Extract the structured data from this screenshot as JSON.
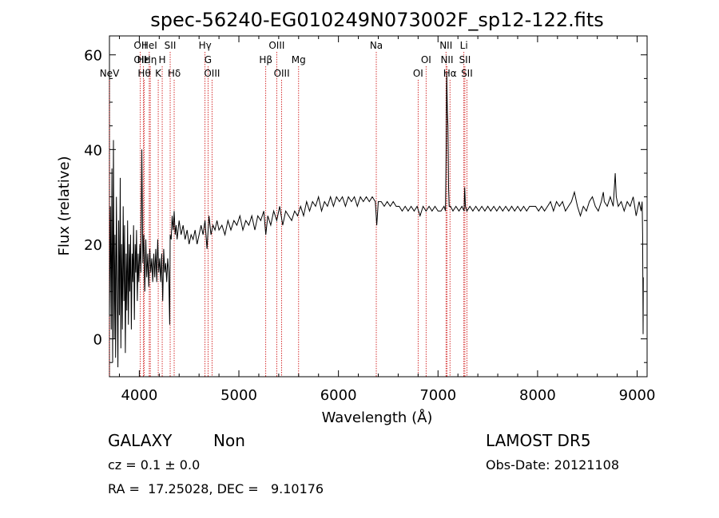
{
  "chart_data": {
    "type": "line",
    "title": "spec-56240-EG010249N073002F_sp12-122.fits",
    "xlabel": "Wavelength (Å)",
    "ylabel": "Flux (relative)",
    "xlim": [
      3700,
      9100
    ],
    "ylim": [
      -8,
      64
    ],
    "x_ticks": [
      4000,
      5000,
      6000,
      7000,
      8000,
      9000
    ],
    "x_tick_labels": [
      "4000",
      "5000",
      "6000",
      "7000",
      "8000",
      "9000"
    ],
    "y_ticks": [
      0,
      20,
      40,
      60
    ],
    "y_tick_labels": [
      "0",
      "20",
      "40",
      "60"
    ],
    "grid": false,
    "line_color": "#000000",
    "marker_color": "#cc0000",
    "line_markers": [
      {
        "label": "NeV",
        "x": 3700,
        "row": 3
      },
      {
        "label": "OII",
        "x": 4010,
        "row": 1
      },
      {
        "label": "OII",
        "x": 4010,
        "row": 2
      },
      {
        "label": "Hε",
        "x": 4040,
        "row": 2
      },
      {
        "label": "Hθ",
        "x": 4050,
        "row": 3
      },
      {
        "label": "HeI",
        "x": 4100,
        "row": 1
      },
      {
        "label": "Hη",
        "x": 4110,
        "row": 2
      },
      {
        "label": "K",
        "x": 4190,
        "row": 3
      },
      {
        "label": "H",
        "x": 4230,
        "row": 2
      },
      {
        "label": "SII",
        "x": 4310,
        "row": 1
      },
      {
        "label": "Hδ",
        "x": 4350,
        "row": 3
      },
      {
        "label": "Hγ",
        "x": 4660,
        "row": 1
      },
      {
        "label": "G",
        "x": 4690,
        "row": 2
      },
      {
        "label": "OIII",
        "x": 4730,
        "row": 3
      },
      {
        "label": "Hβ",
        "x": 5270,
        "row": 2
      },
      {
        "label": "OIII",
        "x": 5380,
        "row": 1
      },
      {
        "label": "OIII",
        "x": 5430,
        "row": 3
      },
      {
        "label": "Mg",
        "x": 5600,
        "row": 2
      },
      {
        "label": "Na",
        "x": 6380,
        "row": 1
      },
      {
        "label": "OI",
        "x": 6800,
        "row": 3
      },
      {
        "label": "OI",
        "x": 6880,
        "row": 2
      },
      {
        "label": "NII",
        "x": 7080,
        "row": 1
      },
      {
        "label": "NII",
        "x": 7090,
        "row": 2
      },
      {
        "label": "Hα",
        "x": 7120,
        "row": 3
      },
      {
        "label": "Li",
        "x": 7260,
        "row": 1
      },
      {
        "label": "SII",
        "x": 7270,
        "row": 2
      },
      {
        "label": "SII",
        "x": 7290,
        "row": 3
      }
    ],
    "series": [
      {
        "values": [
          [
            3700,
            5
          ],
          [
            3710,
            28
          ],
          [
            3718,
            2
          ],
          [
            3725,
            36
          ],
          [
            3732,
            -5
          ],
          [
            3740,
            42
          ],
          [
            3748,
            0
          ],
          [
            3755,
            22
          ],
          [
            3762,
            -4
          ],
          [
            3770,
            30
          ],
          [
            3778,
            10
          ],
          [
            3785,
            -6
          ],
          [
            3792,
            25
          ],
          [
            3800,
            5
          ],
          [
            3808,
            34
          ],
          [
            3815,
            -2
          ],
          [
            3822,
            20
          ],
          [
            3830,
            2
          ],
          [
            3838,
            28
          ],
          [
            3845,
            8
          ],
          [
            3852,
            24
          ],
          [
            3860,
            -3
          ],
          [
            3868,
            18
          ],
          [
            3875,
            6
          ],
          [
            3882,
            25
          ],
          [
            3890,
            3
          ],
          [
            3898,
            20
          ],
          [
            3905,
            10
          ],
          [
            3912,
            22
          ],
          [
            3920,
            2
          ],
          [
            3928,
            18
          ],
          [
            3935,
            12
          ],
          [
            3942,
            24
          ],
          [
            3950,
            4
          ],
          [
            3958,
            20
          ],
          [
            3965,
            14
          ],
          [
            3972,
            23
          ],
          [
            3980,
            8
          ],
          [
            3988,
            18
          ],
          [
            3995,
            12
          ],
          [
            4005,
            20
          ],
          [
            4015,
            14
          ],
          [
            4025,
            40
          ],
          [
            4035,
            16
          ],
          [
            4045,
            22
          ],
          [
            4055,
            10
          ],
          [
            4065,
            21
          ],
          [
            4075,
            13
          ],
          [
            4085,
            18
          ],
          [
            4095,
            11
          ],
          [
            4105,
            19
          ],
          [
            4115,
            14
          ],
          [
            4125,
            17
          ],
          [
            4135,
            12
          ],
          [
            4145,
            18
          ],
          [
            4155,
            13
          ],
          [
            4165,
            19
          ],
          [
            4175,
            12
          ],
          [
            4185,
            21
          ],
          [
            4195,
            14
          ],
          [
            4205,
            17
          ],
          [
            4215,
            12
          ],
          [
            4225,
            18
          ],
          [
            4235,
            8
          ],
          [
            4245,
            19
          ],
          [
            4255,
            14
          ],
          [
            4265,
            16
          ],
          [
            4275,
            12
          ],
          [
            4285,
            17
          ],
          [
            4295,
            14
          ],
          [
            4305,
            3
          ],
          [
            4310,
            22
          ],
          [
            4320,
            21
          ],
          [
            4330,
            26
          ],
          [
            4340,
            23
          ],
          [
            4350,
            27
          ],
          [
            4360,
            22
          ],
          [
            4370,
            24
          ],
          [
            4380,
            21
          ],
          [
            4400,
            25
          ],
          [
            4420,
            22
          ],
          [
            4440,
            24
          ],
          [
            4460,
            21
          ],
          [
            4480,
            23
          ],
          [
            4500,
            20
          ],
          [
            4520,
            22
          ],
          [
            4540,
            21
          ],
          [
            4560,
            23
          ],
          [
            4580,
            20
          ],
          [
            4600,
            22
          ],
          [
            4620,
            24
          ],
          [
            4640,
            22
          ],
          [
            4660,
            25
          ],
          [
            4680,
            19
          ],
          [
            4700,
            26
          ],
          [
            4720,
            22
          ],
          [
            4740,
            24
          ],
          [
            4760,
            23
          ],
          [
            4780,
            25
          ],
          [
            4800,
            23
          ],
          [
            4830,
            24
          ],
          [
            4860,
            22
          ],
          [
            4890,
            25
          ],
          [
            4920,
            23
          ],
          [
            4950,
            25
          ],
          [
            4980,
            24
          ],
          [
            5010,
            26
          ],
          [
            5040,
            23
          ],
          [
            5070,
            25
          ],
          [
            5100,
            24
          ],
          [
            5130,
            26
          ],
          [
            5160,
            23
          ],
          [
            5190,
            26
          ],
          [
            5220,
            25
          ],
          [
            5250,
            27
          ],
          [
            5270,
            22
          ],
          [
            5290,
            26
          ],
          [
            5320,
            24
          ],
          [
            5350,
            27
          ],
          [
            5380,
            25
          ],
          [
            5410,
            28
          ],
          [
            5440,
            24
          ],
          [
            5470,
            27
          ],
          [
            5500,
            26
          ],
          [
            5530,
            25
          ],
          [
            5560,
            27
          ],
          [
            5590,
            26
          ],
          [
            5620,
            28
          ],
          [
            5650,
            26
          ],
          [
            5680,
            29
          ],
          [
            5710,
            27
          ],
          [
            5740,
            29
          ],
          [
            5770,
            28
          ],
          [
            5800,
            30
          ],
          [
            5830,
            27
          ],
          [
            5860,
            29
          ],
          [
            5890,
            28
          ],
          [
            5920,
            30
          ],
          [
            5950,
            28
          ],
          [
            5980,
            30
          ],
          [
            6010,
            29
          ],
          [
            6040,
            30
          ],
          [
            6070,
            28
          ],
          [
            6100,
            30
          ],
          [
            6130,
            29
          ],
          [
            6160,
            30
          ],
          [
            6190,
            28
          ],
          [
            6220,
            30
          ],
          [
            6250,
            29
          ],
          [
            6280,
            30
          ],
          [
            6310,
            29
          ],
          [
            6340,
            30
          ],
          [
            6370,
            29
          ],
          [
            6385,
            24
          ],
          [
            6400,
            29
          ],
          [
            6430,
            29
          ],
          [
            6460,
            28
          ],
          [
            6490,
            29
          ],
          [
            6520,
            28
          ],
          [
            6550,
            29
          ],
          [
            6580,
            28
          ],
          [
            6610,
            28
          ],
          [
            6640,
            27
          ],
          [
            6670,
            28
          ],
          [
            6700,
            27
          ],
          [
            6730,
            28
          ],
          [
            6760,
            27
          ],
          [
            6790,
            28
          ],
          [
            6820,
            26
          ],
          [
            6850,
            28
          ],
          [
            6880,
            27
          ],
          [
            6910,
            28
          ],
          [
            6940,
            27
          ],
          [
            6970,
            28
          ],
          [
            7000,
            27
          ],
          [
            7030,
            27
          ],
          [
            7060,
            28
          ],
          [
            7075,
            27
          ],
          [
            7082,
            40
          ],
          [
            7088,
            56
          ],
          [
            7094,
            48
          ],
          [
            7100,
            45
          ],
          [
            7106,
            32
          ],
          [
            7112,
            28
          ],
          [
            7125,
            28
          ],
          [
            7150,
            27
          ],
          [
            7180,
            28
          ],
          [
            7210,
            27
          ],
          [
            7240,
            28
          ],
          [
            7262,
            27
          ],
          [
            7268,
            32
          ],
          [
            7275,
            28
          ],
          [
            7290,
            27
          ],
          [
            7320,
            28
          ],
          [
            7350,
            27
          ],
          [
            7380,
            28
          ],
          [
            7410,
            27
          ],
          [
            7440,
            28
          ],
          [
            7470,
            27
          ],
          [
            7500,
            28
          ],
          [
            7530,
            27
          ],
          [
            7560,
            28
          ],
          [
            7590,
            27
          ],
          [
            7620,
            28
          ],
          [
            7650,
            27
          ],
          [
            7680,
            28
          ],
          [
            7710,
            27
          ],
          [
            7740,
            28
          ],
          [
            7770,
            27
          ],
          [
            7800,
            28
          ],
          [
            7830,
            27
          ],
          [
            7860,
            28
          ],
          [
            7890,
            27
          ],
          [
            7920,
            28
          ],
          [
            7950,
            28
          ],
          [
            7980,
            28
          ],
          [
            8010,
            27
          ],
          [
            8040,
            28
          ],
          [
            8070,
            27
          ],
          [
            8100,
            28
          ],
          [
            8130,
            29
          ],
          [
            8160,
            27
          ],
          [
            8190,
            29
          ],
          [
            8220,
            28
          ],
          [
            8250,
            29
          ],
          [
            8280,
            27
          ],
          [
            8310,
            28
          ],
          [
            8340,
            29
          ],
          [
            8370,
            31
          ],
          [
            8400,
            28
          ],
          [
            8430,
            26
          ],
          [
            8460,
            28
          ],
          [
            8490,
            27
          ],
          [
            8520,
            29
          ],
          [
            8550,
            30
          ],
          [
            8580,
            28
          ],
          [
            8610,
            27
          ],
          [
            8640,
            29
          ],
          [
            8660,
            31
          ],
          [
            8670,
            29
          ],
          [
            8700,
            28
          ],
          [
            8730,
            30
          ],
          [
            8760,
            28
          ],
          [
            8780,
            35
          ],
          [
            8790,
            30
          ],
          [
            8810,
            28
          ],
          [
            8840,
            29
          ],
          [
            8870,
            27
          ],
          [
            8900,
            29
          ],
          [
            8930,
            28
          ],
          [
            8960,
            30
          ],
          [
            8990,
            26
          ],
          [
            9020,
            29
          ],
          [
            9040,
            27
          ],
          [
            9050,
            29
          ],
          [
            9055,
            22
          ],
          [
            9060,
            1
          ],
          [
            9062,
            13
          ]
        ]
      }
    ],
    "footer": {
      "object_class": "GALAXY",
      "object_subclass": "Non",
      "survey": "LAMOST DR5",
      "cz_text": "cz = 0.1 ± 0.0",
      "obs_date": "Obs-Date: 20121108",
      "coords": "RA =  17.25028, DEC =   9.10176"
    }
  }
}
